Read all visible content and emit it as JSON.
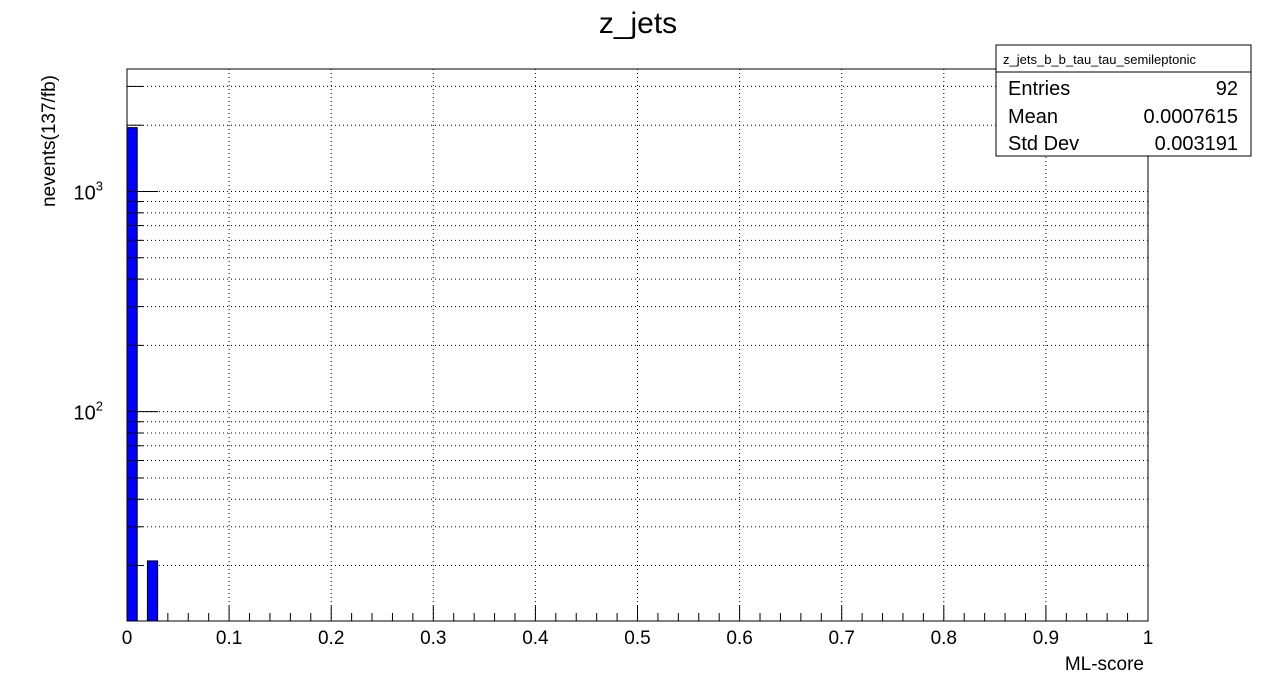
{
  "chart_data": {
    "type": "bar",
    "title": "z_jets",
    "xlabel": "ML-score",
    "ylabel": "nevents(137/fb)",
    "xlim": [
      0,
      1
    ],
    "y_scale": "log",
    "ylim": [
      11.2,
      3600
    ],
    "grid": true,
    "bar_color": "#0000ff",
    "x_ticks": [
      "0",
      "0.1",
      "0.2",
      "0.3",
      "0.4",
      "0.5",
      "0.6",
      "0.7",
      "0.8",
      "0.9",
      "1"
    ],
    "y_ticks": [
      {
        "base": "10",
        "exp": "2",
        "value": 100
      },
      {
        "base": "10",
        "exp": "3",
        "value": 1000
      }
    ],
    "bins": [
      {
        "x0": 0.0,
        "x1": 0.01,
        "value": 1950
      },
      {
        "x0": 0.02,
        "x1": 0.03,
        "value": 21
      }
    ],
    "stats": {
      "name": "z_jets_b_b_tau_tau_semileptonic",
      "rows": [
        {
          "label": "Entries",
          "value": "92"
        },
        {
          "label": "Mean",
          "value": "0.0007615"
        },
        {
          "label": "Std Dev",
          "value": "0.003191"
        }
      ]
    }
  }
}
